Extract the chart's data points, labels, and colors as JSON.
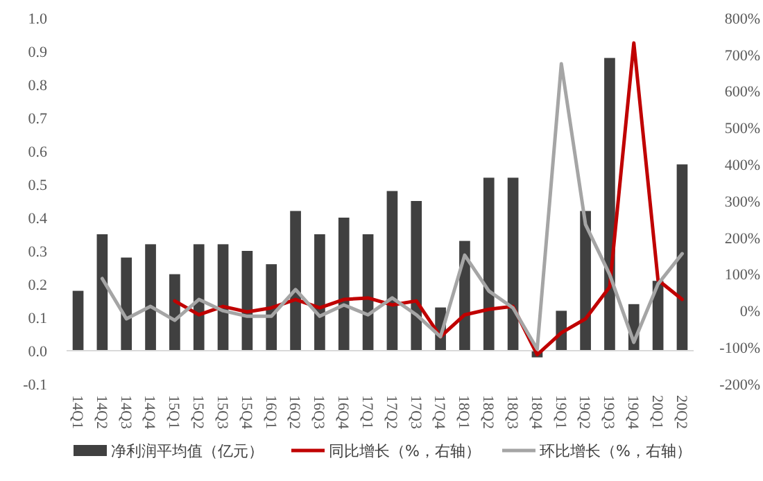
{
  "chart_data": {
    "type": "bar",
    "categories": [
      "14Q1",
      "14Q2",
      "14Q3",
      "14Q4",
      "15Q1",
      "15Q2",
      "15Q3",
      "15Q4",
      "16Q1",
      "16Q2",
      "16Q3",
      "16Q4",
      "17Q1",
      "17Q2",
      "17Q3",
      "17Q4",
      "18Q1",
      "18Q2",
      "18Q3",
      "18Q4",
      "19Q1",
      "19Q2",
      "19Q3",
      "19Q4",
      "20Q1",
      "20Q2"
    ],
    "series": [
      {
        "name": "净利润平均值（亿元）",
        "color": "#404040",
        "values": [
          0.18,
          0.35,
          0.28,
          0.32,
          0.23,
          0.32,
          0.32,
          0.3,
          0.26,
          0.42,
          0.35,
          0.4,
          0.35,
          0.48,
          0.45,
          0.13,
          0.33,
          0.52,
          0.52,
          -0.02,
          0.12,
          0.42,
          0.88,
          0.14,
          0.21,
          0.56
        ]
      },
      {
        "name": "同比增长（%，右轴）",
        "type": "line",
        "axis": "y2",
        "color": "#c00000",
        "values": [
          null,
          null,
          null,
          null,
          27,
          -11,
          12,
          -3,
          8,
          31,
          8,
          31,
          35,
          16,
          27,
          -71,
          -11,
          4,
          12,
          -120,
          -60,
          -22,
          65,
          732,
          84,
          31
        ]
      },
      {
        "name": "环比增长（%，右轴）",
        "type": "line",
        "axis": "y2",
        "color": "#a5a5a5",
        "values": [
          null,
          88,
          -22,
          12,
          -26,
          31,
          0,
          -15,
          -15,
          58,
          -15,
          16,
          -11,
          35,
          -11,
          -71,
          152,
          54,
          8,
          -105,
          675,
          236,
          99,
          -86,
          73,
          156
        ]
      }
    ],
    "ylim": [
      -0.1,
      1.0
    ],
    "yticks": [
      {
        "value": -0.1,
        "label": "-0.1"
      },
      {
        "value": 0,
        "label": "0.0"
      },
      {
        "value": 0.1,
        "label": "0.1"
      },
      {
        "value": 0.2,
        "label": "0.2"
      },
      {
        "value": 0.3,
        "label": "0.3"
      },
      {
        "value": 0.4,
        "label": "0.4"
      },
      {
        "value": 0.5,
        "label": "0.5"
      },
      {
        "value": 0.6,
        "label": "0.6"
      },
      {
        "value": 0.7,
        "label": "0.7"
      },
      {
        "value": 0.8,
        "label": "0.8"
      },
      {
        "value": 0.9,
        "label": "0.9"
      },
      {
        "value": 1.0,
        "label": "1.0"
      }
    ],
    "y2lim": [
      -200,
      800
    ],
    "y2ticks": [
      {
        "value": -200,
        "label": "-200%"
      },
      {
        "value": -100,
        "label": "-100%"
      },
      {
        "value": 0,
        "label": "0%"
      },
      {
        "value": 100,
        "label": "100%"
      },
      {
        "value": 200,
        "label": "200%"
      },
      {
        "value": 300,
        "label": "300%"
      },
      {
        "value": 400,
        "label": "400%"
      },
      {
        "value": 500,
        "label": "500%"
      },
      {
        "value": 600,
        "label": "600%"
      },
      {
        "value": 700,
        "label": "700%"
      },
      {
        "value": 800,
        "label": "800%"
      }
    ],
    "legend": "bottom",
    "marker": "none",
    "line_style": "solid"
  }
}
